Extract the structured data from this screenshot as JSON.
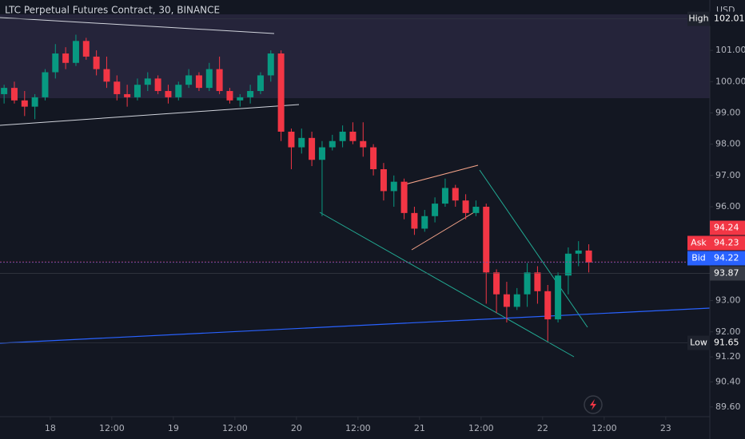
{
  "chart_data": {
    "type": "candlestick",
    "title": "LTC Perpetual Futures Contract, 30, BINANCE",
    "currency": "USD",
    "up_color": "#089981",
    "down_color": "#f23645",
    "xlim": [
      -9.8,
      128.6
    ],
    "xticks": [
      {
        "value": 0,
        "label": "18"
      },
      {
        "value": 12,
        "label": "12:00"
      },
      {
        "value": 24,
        "label": "19"
      },
      {
        "value": 36,
        "label": "12:00"
      },
      {
        "value": 48,
        "label": "20"
      },
      {
        "value": 60,
        "label": "12:00"
      },
      {
        "value": 72,
        "label": "21"
      },
      {
        "value": 84,
        "label": "12:00"
      },
      {
        "value": 96,
        "label": "22"
      },
      {
        "value": 108,
        "label": "12:00"
      },
      {
        "value": 120,
        "label": "23"
      }
    ],
    "ylim": [
      89.34,
      102.61
    ],
    "yticks": [
      {
        "value": 101,
        "label": "101.00"
      },
      {
        "value": 100,
        "label": "100.00"
      },
      {
        "value": 99,
        "label": "99.00"
      },
      {
        "value": 98,
        "label": "98.00"
      },
      {
        "value": 97,
        "label": "97.00"
      },
      {
        "value": 96,
        "label": "96.00"
      },
      {
        "value": 93,
        "label": "93.00"
      },
      {
        "value": 92,
        "label": "92.00"
      },
      {
        "value": 91.2,
        "label": "91.20"
      },
      {
        "value": 90.4,
        "label": "90.40"
      },
      {
        "value": 89.6,
        "label": "89.60"
      }
    ],
    "candles": [
      {
        "t": -9,
        "o": 99.6,
        "h": 99.9,
        "l": 99.3,
        "c": 99.8
      },
      {
        "t": -7,
        "o": 99.8,
        "h": 100.0,
        "l": 99.3,
        "c": 99.4
      },
      {
        "t": -5,
        "o": 99.4,
        "h": 99.7,
        "l": 98.9,
        "c": 99.2
      },
      {
        "t": -3,
        "o": 99.2,
        "h": 99.6,
        "l": 98.8,
        "c": 99.5
      },
      {
        "t": -1,
        "o": 99.5,
        "h": 100.4,
        "l": 99.4,
        "c": 100.3
      },
      {
        "t": 1,
        "o": 100.3,
        "h": 101.2,
        "l": 100.1,
        "c": 100.9
      },
      {
        "t": 3,
        "o": 100.9,
        "h": 101.1,
        "l": 100.4,
        "c": 100.6
      },
      {
        "t": 5,
        "o": 100.6,
        "h": 101.5,
        "l": 100.5,
        "c": 101.3
      },
      {
        "t": 7,
        "o": 101.3,
        "h": 101.4,
        "l": 100.7,
        "c": 100.8
      },
      {
        "t": 9,
        "o": 100.8,
        "h": 101.0,
        "l": 100.2,
        "c": 100.4
      },
      {
        "t": 11,
        "o": 100.4,
        "h": 100.8,
        "l": 99.8,
        "c": 100.0
      },
      {
        "t": 13,
        "o": 100.0,
        "h": 100.2,
        "l": 99.4,
        "c": 99.6
      },
      {
        "t": 15,
        "o": 99.6,
        "h": 99.9,
        "l": 99.2,
        "c": 99.5
      },
      {
        "t": 17,
        "o": 99.5,
        "h": 100.1,
        "l": 99.4,
        "c": 99.9
      },
      {
        "t": 19,
        "o": 99.9,
        "h": 100.3,
        "l": 99.7,
        "c": 100.1
      },
      {
        "t": 21,
        "o": 100.1,
        "h": 100.2,
        "l": 99.6,
        "c": 99.7
      },
      {
        "t": 23,
        "o": 99.7,
        "h": 99.9,
        "l": 99.3,
        "c": 99.5
      },
      {
        "t": 25,
        "o": 99.5,
        "h": 100.0,
        "l": 99.4,
        "c": 99.9
      },
      {
        "t": 27,
        "o": 99.9,
        "h": 100.4,
        "l": 99.8,
        "c": 100.2
      },
      {
        "t": 29,
        "o": 100.2,
        "h": 100.3,
        "l": 99.7,
        "c": 99.8
      },
      {
        "t": 31,
        "o": 99.8,
        "h": 100.6,
        "l": 99.7,
        "c": 100.4
      },
      {
        "t": 33,
        "o": 100.4,
        "h": 100.8,
        "l": 99.6,
        "c": 99.7
      },
      {
        "t": 35,
        "o": 99.7,
        "h": 99.8,
        "l": 99.3,
        "c": 99.4
      },
      {
        "t": 37,
        "o": 99.4,
        "h": 99.6,
        "l": 99.2,
        "c": 99.5
      },
      {
        "t": 39,
        "o": 99.5,
        "h": 99.9,
        "l": 99.3,
        "c": 99.7
      },
      {
        "t": 41,
        "o": 99.7,
        "h": 100.3,
        "l": 99.6,
        "c": 100.2
      },
      {
        "t": 43,
        "o": 100.2,
        "h": 101.0,
        "l": 100.0,
        "c": 100.9
      },
      {
        "t": 45,
        "o": 100.9,
        "h": 101.0,
        "l": 98.1,
        "c": 98.4
      },
      {
        "t": 47,
        "o": 98.4,
        "h": 98.5,
        "l": 97.2,
        "c": 97.9
      },
      {
        "t": 49,
        "o": 97.9,
        "h": 98.5,
        "l": 97.7,
        "c": 98.2
      },
      {
        "t": 51,
        "o": 98.2,
        "h": 98.4,
        "l": 97.3,
        "c": 97.5
      },
      {
        "t": 53,
        "o": 97.5,
        "h": 98.1,
        "l": 95.7,
        "c": 97.9
      },
      {
        "t": 55,
        "o": 97.9,
        "h": 98.3,
        "l": 97.8,
        "c": 98.1
      },
      {
        "t": 57,
        "o": 98.1,
        "h": 98.6,
        "l": 97.9,
        "c": 98.4
      },
      {
        "t": 59,
        "o": 98.4,
        "h": 98.7,
        "l": 98.0,
        "c": 98.1
      },
      {
        "t": 61,
        "o": 98.1,
        "h": 98.7,
        "l": 97.6,
        "c": 97.9
      },
      {
        "t": 63,
        "o": 97.9,
        "h": 98.0,
        "l": 97.0,
        "c": 97.2
      },
      {
        "t": 65,
        "o": 97.2,
        "h": 97.4,
        "l": 96.2,
        "c": 96.5
      },
      {
        "t": 67,
        "o": 96.5,
        "h": 97.0,
        "l": 96.0,
        "c": 96.8
      },
      {
        "t": 69,
        "o": 96.8,
        "h": 96.9,
        "l": 95.6,
        "c": 95.8
      },
      {
        "t": 71,
        "o": 95.8,
        "h": 96.0,
        "l": 95.1,
        "c": 95.3
      },
      {
        "t": 73,
        "o": 95.3,
        "h": 95.9,
        "l": 95.2,
        "c": 95.7
      },
      {
        "t": 75,
        "o": 95.7,
        "h": 96.3,
        "l": 95.5,
        "c": 96.1
      },
      {
        "t": 77,
        "o": 96.1,
        "h": 96.9,
        "l": 96.0,
        "c": 96.6
      },
      {
        "t": 79,
        "o": 96.6,
        "h": 96.7,
        "l": 96.0,
        "c": 96.2
      },
      {
        "t": 81,
        "o": 96.2,
        "h": 96.4,
        "l": 95.6,
        "c": 95.8
      },
      {
        "t": 83,
        "o": 95.8,
        "h": 96.2,
        "l": 95.7,
        "c": 96.0
      },
      {
        "t": 85,
        "o": 96.0,
        "h": 96.1,
        "l": 92.9,
        "c": 93.9
      },
      {
        "t": 87,
        "o": 93.9,
        "h": 94.0,
        "l": 92.6,
        "c": 93.2
      },
      {
        "t": 89,
        "o": 93.2,
        "h": 93.6,
        "l": 92.3,
        "c": 92.8
      },
      {
        "t": 91,
        "o": 92.8,
        "h": 93.4,
        "l": 92.7,
        "c": 93.2
      },
      {
        "t": 93,
        "o": 93.2,
        "h": 94.2,
        "l": 92.8,
        "c": 93.9
      },
      {
        "t": 95,
        "o": 93.9,
        "h": 94.1,
        "l": 92.9,
        "c": 93.3
      },
      {
        "t": 97,
        "o": 93.3,
        "h": 93.5,
        "l": 91.7,
        "c": 92.4
      },
      {
        "t": 99,
        "o": 92.4,
        "h": 93.9,
        "l": 92.3,
        "c": 93.8
      },
      {
        "t": 101,
        "o": 93.8,
        "h": 94.7,
        "l": 93.2,
        "c": 94.5
      },
      {
        "t": 103,
        "o": 94.5,
        "h": 94.9,
        "l": 94.1,
        "c": 94.6
      },
      {
        "t": 105,
        "o": 94.6,
        "h": 94.8,
        "l": 93.9,
        "c": 94.22
      }
    ],
    "price_labels": [
      {
        "label": "High",
        "price": 102.01,
        "color": "#131722"
      },
      {
        "price": 94.24,
        "color": "#f23645"
      },
      {
        "label": "Ask",
        "price": 94.23,
        "color": "#f23645"
      },
      {
        "label": "Bid",
        "price": 94.22,
        "color": "#2962ff"
      },
      {
        "price": 93.87,
        "color": "#363a45"
      },
      {
        "label": "Low",
        "price": 91.65,
        "color": "#131722"
      }
    ]
  }
}
